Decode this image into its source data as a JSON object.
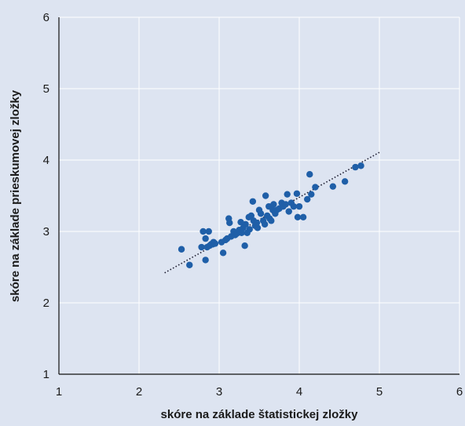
{
  "chart_data": {
    "type": "scatter",
    "title": "",
    "xlabel": "skóre na základe štatistickej zložky",
    "ylabel": "skóre na základe prieskumovej zložky",
    "xlim": [
      1,
      6
    ],
    "ylim": [
      1,
      6
    ],
    "x_ticks": [
      "1",
      "2",
      "3",
      "4",
      "5",
      "6"
    ],
    "y_ticks": [
      "1",
      "2",
      "3",
      "4",
      "5",
      "6"
    ],
    "grid": true,
    "legend": "none",
    "colors": {
      "background": "#dde4f1",
      "plot_area": "#dde4f1",
      "point": "#1f5fa8",
      "trendline": "#1a1a2e",
      "grid": "#ffffff"
    },
    "trendline": {
      "style": "dotted",
      "x": [
        2.32,
        5.02
      ],
      "y": [
        2.42,
        4.12
      ]
    },
    "points": [
      [
        2.53,
        2.75
      ],
      [
        2.63,
        2.53
      ],
      [
        2.78,
        2.78
      ],
      [
        2.8,
        3.0
      ],
      [
        2.83,
        2.6
      ],
      [
        2.83,
        2.9
      ],
      [
        2.85,
        2.78
      ],
      [
        2.87,
        3.0
      ],
      [
        2.88,
        2.8
      ],
      [
        2.9,
        2.82
      ],
      [
        2.92,
        2.82
      ],
      [
        2.93,
        2.85
      ],
      [
        2.95,
        2.83
      ],
      [
        3.03,
        2.85
      ],
      [
        3.05,
        2.7
      ],
      [
        3.08,
        2.88
      ],
      [
        3.1,
        2.9
      ],
      [
        3.12,
        3.18
      ],
      [
        3.13,
        3.12
      ],
      [
        3.15,
        2.93
      ],
      [
        3.18,
        3.0
      ],
      [
        3.2,
        2.95
      ],
      [
        3.22,
        2.97
      ],
      [
        3.25,
        3.02
      ],
      [
        3.27,
        3.13
      ],
      [
        3.28,
        2.98
      ],
      [
        3.3,
        3.05
      ],
      [
        3.32,
        2.8
      ],
      [
        3.33,
        3.1
      ],
      [
        3.35,
        2.98
      ],
      [
        3.37,
        3.2
      ],
      [
        3.38,
        3.03
      ],
      [
        3.4,
        3.22
      ],
      [
        3.42,
        3.42
      ],
      [
        3.43,
        3.15
      ],
      [
        3.45,
        3.08
      ],
      [
        3.47,
        3.12
      ],
      [
        3.48,
        3.05
      ],
      [
        3.5,
        3.3
      ],
      [
        3.52,
        3.25
      ],
      [
        3.55,
        3.15
      ],
      [
        3.57,
        3.1
      ],
      [
        3.58,
        3.5
      ],
      [
        3.6,
        3.22
      ],
      [
        3.62,
        3.35
      ],
      [
        3.63,
        3.18
      ],
      [
        3.65,
        3.15
      ],
      [
        3.67,
        3.3
      ],
      [
        3.68,
        3.38
      ],
      [
        3.7,
        3.25
      ],
      [
        3.72,
        3.3
      ],
      [
        3.75,
        3.32
      ],
      [
        3.78,
        3.4
      ],
      [
        3.8,
        3.35
      ],
      [
        3.83,
        3.38
      ],
      [
        3.85,
        3.52
      ],
      [
        3.87,
        3.28
      ],
      [
        3.9,
        3.4
      ],
      [
        3.93,
        3.35
      ],
      [
        3.97,
        3.53
      ],
      [
        3.98,
        3.2
      ],
      [
        4.0,
        3.35
      ],
      [
        4.05,
        3.2
      ],
      [
        4.1,
        3.45
      ],
      [
        4.13,
        3.8
      ],
      [
        4.15,
        3.52
      ],
      [
        4.2,
        3.62
      ],
      [
        4.42,
        3.63
      ],
      [
        4.57,
        3.7
      ],
      [
        4.7,
        3.9
      ],
      [
        4.77,
        3.92
      ]
    ]
  }
}
